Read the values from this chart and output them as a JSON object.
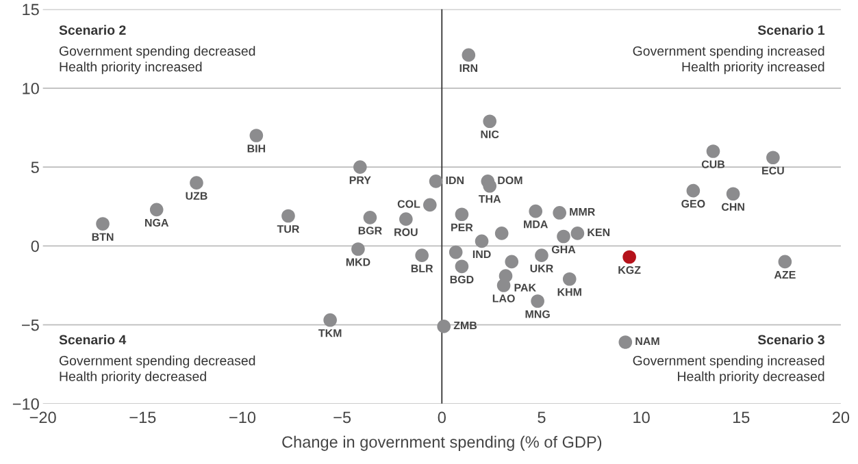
{
  "chart_data": {
    "type": "scatter",
    "xlabel": "Change in government spending (% of GDP)",
    "x": [
      1.34,
      2.4,
      -9.3,
      13.6,
      16.6,
      -4.1,
      -0.3,
      2.3,
      2.4,
      -12.3,
      12.6,
      14.6,
      -14.3,
      4.7,
      5.9,
      -0.6,
      -17.0,
      -7.7,
      -3.6,
      -1.8,
      1.0,
      3.0,
      2.0,
      6.1,
      6.8,
      -4.2,
      -1.0,
      5.0,
      9.4,
      17.2,
      0.7,
      1.0,
      3.5,
      3.2,
      3.1,
      6.4,
      4.8,
      -5.6,
      0.1,
      9.2
    ],
    "values": [
      12.1,
      7.9,
      7.0,
      6.0,
      5.6,
      5.0,
      4.1,
      4.1,
      3.8,
      4.0,
      3.5,
      3.3,
      2.3,
      2.2,
      2.1,
      2.6,
      1.4,
      1.9,
      1.8,
      1.7,
      2.0,
      0.8,
      0.3,
      0.6,
      0.8,
      -0.2,
      -0.6,
      -0.6,
      -0.7,
      -1.0,
      -0.4,
      -1.3,
      -1.0,
      -1.9,
      -2.5,
      -2.1,
      -3.5,
      -4.7,
      -5.1,
      -6.1
    ],
    "colors": [
      "#8c8c8e",
      "#8c8c8e",
      "#8c8c8e",
      "#8c8c8e",
      "#8c8c8e",
      "#8c8c8e",
      "#8c8c8e",
      "#8c8c8e",
      "#8c8c8e",
      "#8c8c8e",
      "#8c8c8e",
      "#8c8c8e",
      "#8c8c8e",
      "#8c8c8e",
      "#8c8c8e",
      "#8c8c8e",
      "#8c8c8e",
      "#8c8c8e",
      "#8c8c8e",
      "#8c8c8e",
      "#8c8c8e",
      "#8c8c8e",
      "#8c8c8e",
      "#8c8c8e",
      "#8c8c8e",
      "#8c8c8e",
      "#8c8c8e",
      "#8c8c8e",
      "#b5121b",
      "#8c8c8e",
      "#8c8c8e",
      "#8c8c8e",
      "#8c8c8e",
      "#8c8c8e",
      "#8c8c8e",
      "#8c8c8e",
      "#8c8c8e",
      "#8c8c8e",
      "#8c8c8e",
      "#8c8c8e"
    ],
    "marker": "circle",
    "xlim": [
      -20,
      20
    ],
    "xticks": [
      {
        "value": -20,
        "label": "−20"
      },
      {
        "value": -15,
        "label": "−15"
      },
      {
        "value": -10,
        "label": "−10"
      },
      {
        "value": -5,
        "label": "−5"
      },
      0,
      5,
      10,
      15,
      20
    ],
    "ylim": [
      -10,
      15
    ],
    "yticks": [
      {
        "value": -10,
        "label": "−10"
      },
      {
        "value": -5,
        "label": "−5"
      },
      0,
      5,
      10,
      15
    ],
    "grid": "y",
    "ref_lines": [
      {
        "axis": "x",
        "value": 0,
        "color": "#333333"
      }
    ],
    "annotations": [
      "Scenario 2\nGovernment spending decreased\nHealth priority increased",
      "Scenario 1\nGovernment spending increased\nHealth priority increased",
      "Scenario 4\nGovernment spending decreased\nHealth priority decreased",
      "Scenario 3\nGovernment spending increased\nHealth priority decreased",
      {
        "text": "IRN",
        "x": 1.34,
        "y": 12.1
      },
      {
        "text": "NIC",
        "x": 2.4,
        "y": 7.9
      },
      {
        "text": "BIH",
        "x": -9.3,
        "y": 7.0
      },
      {
        "text": "CUB",
        "x": 13.6,
        "y": 6.0
      },
      {
        "text": "ECU",
        "x": 16.6,
        "y": 5.6
      },
      {
        "text": "PRY",
        "x": -4.1,
        "y": 5.0
      },
      {
        "text": "IDN",
        "x": -0.3,
        "y": 4.1
      },
      {
        "text": "DOM",
        "x": 2.3,
        "y": 4.1
      },
      {
        "text": "THA",
        "x": 2.4,
        "y": 3.8
      },
      {
        "text": "UZB",
        "x": -12.3,
        "y": 4.0
      },
      {
        "text": "GEO",
        "x": 12.6,
        "y": 3.5
      },
      {
        "text": "CHN",
        "x": 14.6,
        "y": 3.3
      },
      {
        "text": "NGA",
        "x": -14.3,
        "y": 2.3
      },
      {
        "text": "MDA",
        "x": 4.7,
        "y": 2.2
      },
      {
        "text": "MMR",
        "x": 5.9,
        "y": 2.1
      },
      {
        "text": "COL",
        "x": -0.6,
        "y": 2.6
      },
      {
        "text": "BTN",
        "x": -17.0,
        "y": 1.4
      },
      {
        "text": "TUR",
        "x": -7.7,
        "y": 1.9
      },
      {
        "text": "BGR",
        "x": -3.6,
        "y": 1.8
      },
      {
        "text": "ROU",
        "x": -1.8,
        "y": 1.7
      },
      {
        "text": "PER",
        "x": 1.0,
        "y": 2.0
      },
      {
        "text": "IND",
        "x": 2.0,
        "y": 0.3
      },
      {
        "text": "GHA",
        "x": 6.1,
        "y": 0.6
      },
      {
        "text": "KEN",
        "x": 6.8,
        "y": 0.8
      },
      {
        "text": "MKD",
        "x": -4.2,
        "y": -0.2
      },
      {
        "text": "BLR",
        "x": -1.0,
        "y": -0.6
      },
      {
        "text": "UKR",
        "x": 5.0,
        "y": -0.6
      },
      {
        "text": "KGZ",
        "x": 9.4,
        "y": -0.7
      },
      {
        "text": "AZE",
        "x": 17.2,
        "y": -1.0
      },
      {
        "text": "BGD",
        "x": 1.0,
        "y": -1.3
      },
      {
        "text": "PAK",
        "x": 3.2,
        "y": -1.9
      },
      {
        "text": "LAO",
        "x": 3.1,
        "y": -2.5
      },
      {
        "text": "KHM",
        "x": 6.4,
        "y": -2.1
      },
      {
        "text": "MNG",
        "x": 4.8,
        "y": -3.5
      },
      {
        "text": "TKM",
        "x": -5.6,
        "y": -4.7
      },
      {
        "text": "ZMB",
        "x": 0.1,
        "y": -5.1
      },
      {
        "text": "NAM",
        "x": 9.2,
        "y": -6.1
      }
    ]
  }
}
